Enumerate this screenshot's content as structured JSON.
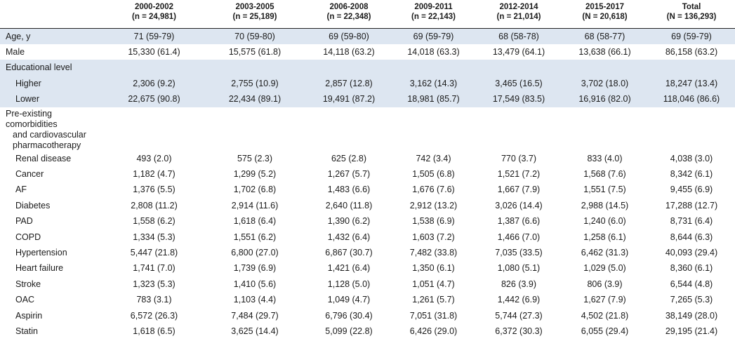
{
  "columns": [
    {
      "label": "",
      "n": ""
    },
    {
      "label": "2000-2002",
      "n": "(n = 24,981)"
    },
    {
      "label": "2003-2005",
      "n": "(n = 25,189)"
    },
    {
      "label": "2006-2008",
      "n": "(n = 22,348)"
    },
    {
      "label": "2009-2011",
      "n": "(n = 22,143)"
    },
    {
      "label": "2012-2014",
      "n": "(n = 21,014)"
    },
    {
      "label": "2015-2017",
      "n": "(N = 20,618)"
    },
    {
      "label": "Total",
      "n": "(N = 136,293)"
    }
  ],
  "rows": [
    {
      "label": "Age, y",
      "values": [
        "71 (59-79)",
        "70 (59-80)",
        "69 (59-80)",
        "69 (59-79)",
        "68 (58-78)",
        "68 (58-77)",
        "69 (59-79)"
      ]
    },
    {
      "label": "Male",
      "values": [
        "15,330 (61.4)",
        "15,575 (61.8)",
        "14,118 (63.2)",
        "14,018 (63.3)",
        "13,479 (64.1)",
        "13,638 (66.1)",
        "86,158 (63.2)"
      ]
    },
    {
      "label": "Educational level",
      "values": [
        "",
        "",
        "",
        "",
        "",
        "",
        ""
      ]
    },
    {
      "label": "Higher",
      "values": [
        "2,306 (9.2)",
        "2,755 (10.9)",
        "2,857 (12.8)",
        "3,162 (14.3)",
        "3,465 (16.5)",
        "3,702 (18.0)",
        "18,247 (13.4)"
      ]
    },
    {
      "label": "Lower",
      "values": [
        "22,675 (90.8)",
        "22,434 (89.1)",
        "19,491 (87.2)",
        "18,981 (85.7)",
        "17,549 (83.5)",
        "16,916 (82.0)",
        "118,046 (86.6)"
      ]
    },
    {
      "label_lines": [
        "Pre-existing comorbidities",
        "and cardiovascular",
        "pharmacotherapy"
      ],
      "values": [
        "",
        "",
        "",
        "",
        "",
        "",
        ""
      ]
    },
    {
      "label": "Renal disease",
      "values": [
        "493 (2.0)",
        "575 (2.3)",
        "625 (2.8)",
        "742 (3.4)",
        "770 (3.7)",
        "833 (4.0)",
        "4,038 (3.0)"
      ]
    },
    {
      "label": "Cancer",
      "values": [
        "1,182 (4.7)",
        "1,299 (5.2)",
        "1,267 (5.7)",
        "1,505 (6.8)",
        "1,521 (7.2)",
        "1,568 (7.6)",
        "8,342 (6.1)"
      ]
    },
    {
      "label": "AF",
      "values": [
        "1,376 (5.5)",
        "1,702 (6.8)",
        "1,483 (6.6)",
        "1,676 (7.6)",
        "1,667 (7.9)",
        "1,551 (7.5)",
        "9,455 (6.9)"
      ]
    },
    {
      "label": "Diabetes",
      "values": [
        "2,808 (11.2)",
        "2,914 (11.6)",
        "2,640 (11.8)",
        "2,912 (13.2)",
        "3,026 (14.4)",
        "2,988 (14.5)",
        "17,288 (12.7)"
      ]
    },
    {
      "label": "PAD",
      "values": [
        "1,558 (6.2)",
        "1,618 (6.4)",
        "1,390 (6.2)",
        "1,538 (6.9)",
        "1,387 (6.6)",
        "1,240 (6.0)",
        "8,731 (6.4)"
      ]
    },
    {
      "label": "COPD",
      "values": [
        "1,334 (5.3)",
        "1,551 (6.2)",
        "1,432 (6.4)",
        "1,603 (7.2)",
        "1,466 (7.0)",
        "1,258 (6.1)",
        "8,644 (6.3)"
      ]
    },
    {
      "label": "Hypertension",
      "values": [
        "5,447 (21.8)",
        "6,800 (27.0)",
        "6,867 (30.7)",
        "7,482 (33.8)",
        "7,035 (33.5)",
        "6,462 (31.3)",
        "40,093 (29.4)"
      ]
    },
    {
      "label": "Heart failure",
      "values": [
        "1,741 (7.0)",
        "1,739 (6.9)",
        "1,421 (6.4)",
        "1,350 (6.1)",
        "1,080 (5.1)",
        "1,029 (5.0)",
        "8,360 (6.1)"
      ]
    },
    {
      "label": "Stroke",
      "values": [
        "1,323 (5.3)",
        "1,410 (5.6)",
        "1,128 (5.0)",
        "1,051 (4.7)",
        "826 (3.9)",
        "806 (3.9)",
        "6,544 (4.8)"
      ]
    },
    {
      "label": "OAC",
      "values": [
        "783 (3.1)",
        "1,103 (4.4)",
        "1,049 (4.7)",
        "1,261 (5.7)",
        "1,442 (6.9)",
        "1,627 (7.9)",
        "7,265 (5.3)"
      ]
    },
    {
      "label": "Aspirin",
      "values": [
        "6,572 (26.3)",
        "7,484 (29.7)",
        "6,796 (30.4)",
        "7,051 (31.8)",
        "5,744 (27.3)",
        "4,502 (21.8)",
        "38,149 (28.0)"
      ]
    },
    {
      "label": "Statin",
      "values": [
        "1,618 (6.5)",
        "3,625 (14.4)",
        "5,099 (22.8)",
        "6,426 (29.0)",
        "6,372 (30.3)",
        "6,055 (29.4)",
        "29,195 (21.4)"
      ]
    }
  ]
}
